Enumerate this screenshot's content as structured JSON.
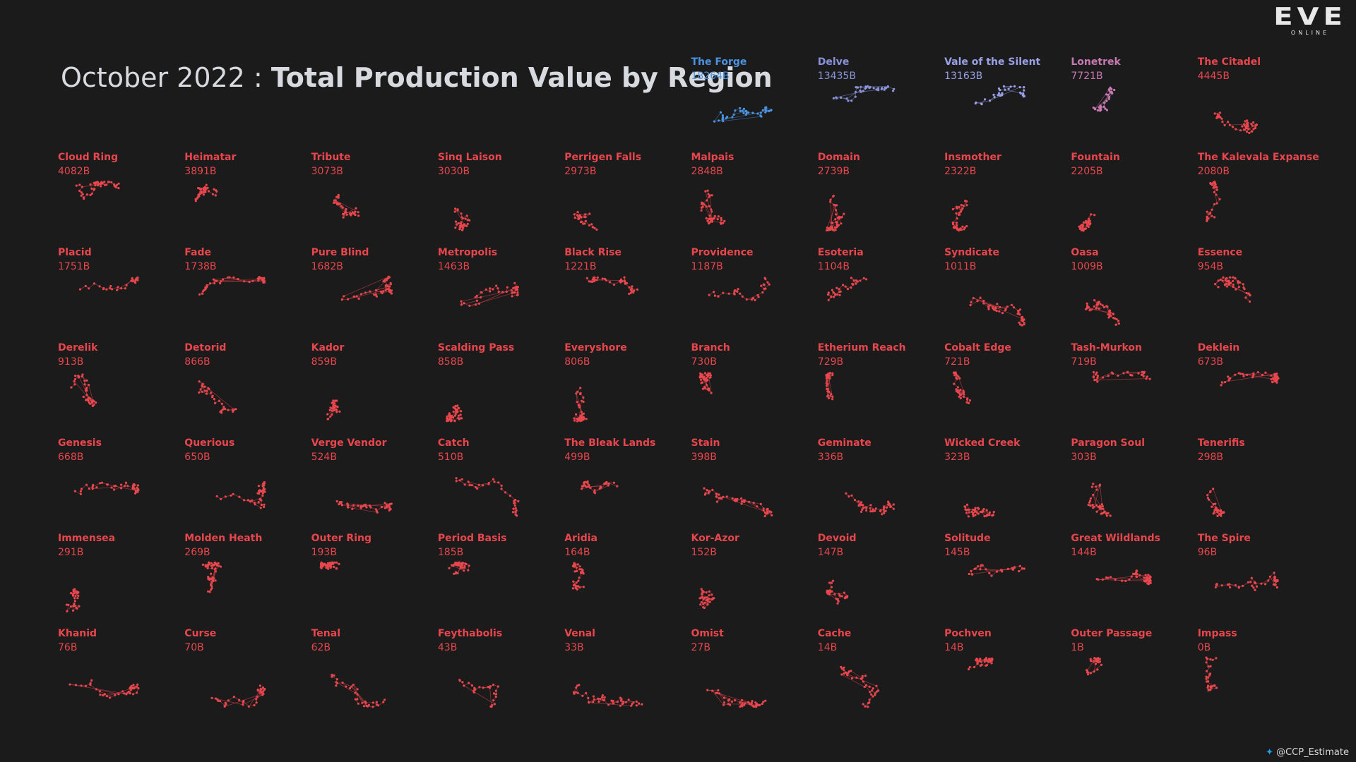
{
  "title": {
    "prefix": "October 2022 : ",
    "main": "Total Production Value by Region"
  },
  "logo": {
    "text": "EVE",
    "subtext": "ONLINE"
  },
  "credit": {
    "icon": "twitter-bird-icon",
    "handle": "@CCP_Estimate"
  },
  "colors": {
    "background": "#1b1b1c",
    "title": "#d7dbe0",
    "top1": "#4b93e0",
    "top2": "#8a93d8",
    "top3": "#9aa0e6",
    "top4": "#c77ab1",
    "default": "#e8464d"
  },
  "chart_data": {
    "type": "small-multiples",
    "unit": "B",
    "regions": [
      {
        "name": "The Forge",
        "value": "18264B",
        "color": "#4b93e0"
      },
      {
        "name": "Delve",
        "value": "13435B",
        "color": "#8a93d8"
      },
      {
        "name": "Vale of the Silent",
        "value": "13163B",
        "color": "#9aa0e6"
      },
      {
        "name": "Lonetrek",
        "value": "7721B",
        "color": "#c77ab1"
      },
      {
        "name": "The Citadel",
        "value": "4445B",
        "color": "#e8464d"
      },
      {
        "name": "Cloud Ring",
        "value": "4082B",
        "color": "#e8464d"
      },
      {
        "name": "Heimatar",
        "value": "3891B",
        "color": "#e8464d"
      },
      {
        "name": "Tribute",
        "value": "3073B",
        "color": "#e8464d"
      },
      {
        "name": "Sinq Laison",
        "value": "3030B",
        "color": "#e8464d"
      },
      {
        "name": "Perrigen Falls",
        "value": "2973B",
        "color": "#e8464d"
      },
      {
        "name": "Malpais",
        "value": "2848B",
        "color": "#e8464d"
      },
      {
        "name": "Domain",
        "value": "2739B",
        "color": "#e8464d"
      },
      {
        "name": "Insmother",
        "value": "2322B",
        "color": "#e8464d"
      },
      {
        "name": "Fountain",
        "value": "2205B",
        "color": "#e8464d"
      },
      {
        "name": "The Kalevala Expanse",
        "value": "2080B",
        "color": "#e8464d"
      },
      {
        "name": "Placid",
        "value": "1751B",
        "color": "#e8464d"
      },
      {
        "name": "Fade",
        "value": "1738B",
        "color": "#e8464d"
      },
      {
        "name": "Pure Blind",
        "value": "1682B",
        "color": "#e8464d"
      },
      {
        "name": "Metropolis",
        "value": "1463B",
        "color": "#e8464d"
      },
      {
        "name": "Black Rise",
        "value": "1221B",
        "color": "#e8464d"
      },
      {
        "name": "Providence",
        "value": "1187B",
        "color": "#e8464d"
      },
      {
        "name": "Esoteria",
        "value": "1104B",
        "color": "#e8464d"
      },
      {
        "name": "Syndicate",
        "value": "1011B",
        "color": "#e8464d"
      },
      {
        "name": "Oasa",
        "value": "1009B",
        "color": "#e8464d"
      },
      {
        "name": "Essence",
        "value": "954B",
        "color": "#e8464d"
      },
      {
        "name": "Derelik",
        "value": "913B",
        "color": "#e8464d"
      },
      {
        "name": "Detorid",
        "value": "866B",
        "color": "#e8464d"
      },
      {
        "name": "Kador",
        "value": "859B",
        "color": "#e8464d"
      },
      {
        "name": "Scalding Pass",
        "value": "858B",
        "color": "#e8464d"
      },
      {
        "name": "Everyshore",
        "value": "806B",
        "color": "#e8464d"
      },
      {
        "name": "Branch",
        "value": "730B",
        "color": "#e8464d"
      },
      {
        "name": "Etherium Reach",
        "value": "729B",
        "color": "#e8464d"
      },
      {
        "name": "Cobalt Edge",
        "value": "721B",
        "color": "#e8464d"
      },
      {
        "name": "Tash-Murkon",
        "value": "719B",
        "color": "#e8464d"
      },
      {
        "name": "Deklein",
        "value": "673B",
        "color": "#e8464d"
      },
      {
        "name": "Genesis",
        "value": "668B",
        "color": "#e8464d"
      },
      {
        "name": "Querious",
        "value": "650B",
        "color": "#e8464d"
      },
      {
        "name": "Verge Vendor",
        "value": "524B",
        "color": "#e8464d"
      },
      {
        "name": "Catch",
        "value": "510B",
        "color": "#e8464d"
      },
      {
        "name": "The Bleak Lands",
        "value": "499B",
        "color": "#e8464d"
      },
      {
        "name": "Stain",
        "value": "398B",
        "color": "#e8464d"
      },
      {
        "name": "Geminate",
        "value": "336B",
        "color": "#e8464d"
      },
      {
        "name": "Wicked Creek",
        "value": "323B",
        "color": "#e8464d"
      },
      {
        "name": "Paragon Soul",
        "value": "303B",
        "color": "#e8464d"
      },
      {
        "name": "Tenerifis",
        "value": "298B",
        "color": "#e8464d"
      },
      {
        "name": "Immensea",
        "value": "291B",
        "color": "#e8464d"
      },
      {
        "name": "Molden Heath",
        "value": "269B",
        "color": "#e8464d"
      },
      {
        "name": "Outer Ring",
        "value": "193B",
        "color": "#e8464d"
      },
      {
        "name": "Period Basis",
        "value": "185B",
        "color": "#e8464d"
      },
      {
        "name": "Aridia",
        "value": "164B",
        "color": "#e8464d"
      },
      {
        "name": "Kor-Azor",
        "value": "152B",
        "color": "#e8464d"
      },
      {
        "name": "Devoid",
        "value": "147B",
        "color": "#e8464d"
      },
      {
        "name": "Solitude",
        "value": "145B",
        "color": "#e8464d"
      },
      {
        "name": "Great Wildlands",
        "value": "144B",
        "color": "#e8464d"
      },
      {
        "name": "The Spire",
        "value": "96B",
        "color": "#e8464d"
      },
      {
        "name": "Khanid",
        "value": "76B",
        "color": "#e8464d"
      },
      {
        "name": "Curse",
        "value": "70B",
        "color": "#e8464d"
      },
      {
        "name": "Tenal",
        "value": "62B",
        "color": "#e8464d"
      },
      {
        "name": "Feythabolis",
        "value": "43B",
        "color": "#e8464d"
      },
      {
        "name": "Venal",
        "value": "33B",
        "color": "#e8464d"
      },
      {
        "name": "Omist",
        "value": "27B",
        "color": "#e8464d"
      },
      {
        "name": "Cache",
        "value": "14B",
        "color": "#e8464d"
      },
      {
        "name": "Pochven",
        "value": "14B",
        "color": "#e8464d"
      },
      {
        "name": "Outer Passage",
        "value": "1B",
        "color": "#e8464d"
      },
      {
        "name": "Impass",
        "value": "0B",
        "color": "#e8464d"
      }
    ]
  }
}
